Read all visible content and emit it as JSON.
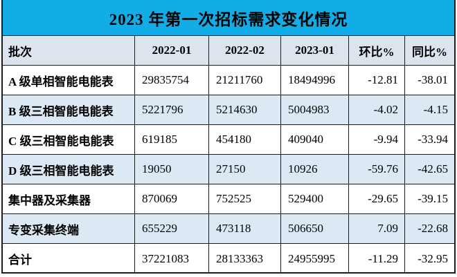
{
  "title": "2023 年第一次招标需求变化情况",
  "colors": {
    "title_bg": "#12ADE6",
    "header_bg": "#DCE4EE",
    "alt_row_bg": "#DCE9F4",
    "border": "#1A1A1A"
  },
  "table": {
    "columns": [
      "批次",
      "2022-01",
      "2022-02",
      "2023-01",
      "环比%",
      "同比%"
    ],
    "rows": [
      {
        "label": "A 级单相智能电能表",
        "values": [
          "29835754",
          "21211760",
          "18494996",
          "-12.81",
          "-38.01"
        ]
      },
      {
        "label": "B 级三相智能电能表",
        "values": [
          "5221796",
          "5214630",
          "5004983",
          "-4.02",
          "-4.15"
        ]
      },
      {
        "label": "C 级三相智能电能表",
        "values": [
          "619185",
          "454180",
          "409040",
          "-9.94",
          "-33.94"
        ]
      },
      {
        "label": "D 级三相智能电能表",
        "values": [
          "19050",
          "27150",
          "10926",
          "-59.76",
          "-42.65"
        ]
      },
      {
        "label": "集中器及采集器",
        "values": [
          "870069",
          "752525",
          "529400",
          "-29.65",
          "-39.15"
        ]
      },
      {
        "label": "专变采集终端",
        "values": [
          "655229",
          "473118",
          "506650",
          "7.09",
          "-22.68"
        ]
      },
      {
        "label": "合计",
        "values": [
          "37221083",
          "28133363",
          "24955995",
          "-11.29",
          "-32.95"
        ]
      }
    ]
  }
}
